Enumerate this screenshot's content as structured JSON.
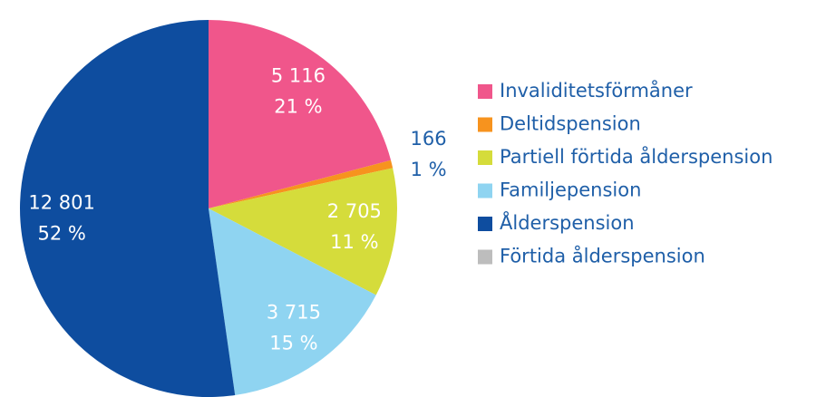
{
  "chart_data": {
    "type": "pie",
    "categories": [
      "Invaliditetsförmåner",
      "Deltidspension",
      "Partiell förtida ålderspension",
      "Familjepension",
      "Ålderspension",
      "Förtida ålderspension"
    ],
    "values": [
      5116,
      166,
      2705,
      3715,
      12801,
      0
    ],
    "value_labels": [
      "5 116",
      "166",
      "2 705",
      "3 715",
      "12 801",
      null
    ],
    "percents": [
      21,
      1,
      11,
      15,
      52,
      null
    ],
    "percent_labels": [
      "21 %",
      "1 %",
      "11 %",
      "15 %",
      "52 %",
      null
    ],
    "colors": [
      "#f0568b",
      "#f7931e",
      "#d5dc3b",
      "#8fd4f1",
      "#0e4d9f",
      "#bdbdbd"
    ],
    "legend": "right"
  }
}
